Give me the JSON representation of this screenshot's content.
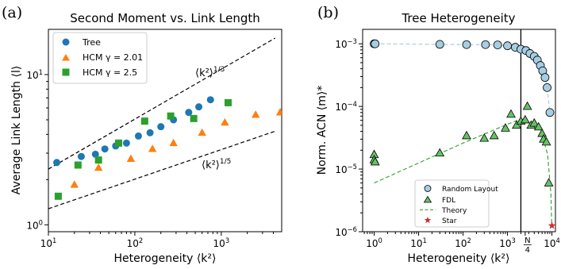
{
  "chart_data": [
    {
      "panel_label": "(a)",
      "type": "scatter",
      "title": "Second Moment vs. Link Length",
      "xlabel": "Heterogeneity ⟨k²⟩",
      "ylabel": "Average Link Length ⟨l⟩",
      "xscale": "log",
      "yscale": "log",
      "xlim": [
        10,
        5000
      ],
      "ylim": [
        0.9,
        20
      ],
      "x_ticks": [
        {
          "value": 10,
          "base": "10",
          "exp": "1"
        },
        {
          "value": 100,
          "base": "10",
          "exp": "2"
        },
        {
          "value": 1000,
          "base": "10",
          "exp": "3"
        }
      ],
      "y_ticks": [
        {
          "value": 1,
          "base": "10",
          "exp": "0"
        },
        {
          "value": 10,
          "base": "10",
          "exp": "1"
        }
      ],
      "legend_position": "top-left",
      "grid": false,
      "series": [
        {
          "name": "Tree",
          "marker": "circle",
          "color": "#1f77b4",
          "x": [
            12.5,
            24,
            35,
            45,
            60,
            80,
            110,
            150,
            200,
            280,
            420,
            550,
            750
          ],
          "y": [
            2.6,
            2.85,
            2.95,
            3.2,
            3.35,
            3.5,
            3.9,
            4.1,
            4.5,
            5.0,
            5.6,
            6.1,
            6.8
          ]
        },
        {
          "name": "HCM γ = 2.01",
          "marker": "triangle",
          "color": "#ff7f0e",
          "x": [
            20,
            38,
            90,
            160,
            280,
            600,
            1100,
            2500,
            4800
          ],
          "y": [
            1.85,
            2.4,
            2.75,
            3.2,
            3.5,
            4.1,
            4.8,
            5.4,
            5.6
          ]
        },
        {
          "name": "HCM γ = 2.5",
          "marker": "square",
          "color": "#2ca02c",
          "x": [
            13,
            22,
            38,
            65,
            130,
            260,
            480,
            1200
          ],
          "y": [
            1.55,
            2.5,
            2.7,
            3.5,
            4.9,
            5.3,
            5.1,
            6.5
          ]
        }
      ],
      "reference_lines": [
        {
          "label": "⟨k²⟩",
          "exponent": "1/3",
          "x": [
            10,
            4200
          ],
          "y": [
            2.35,
            17.5
          ],
          "style": "dashed"
        },
        {
          "label": "⟨k²⟩",
          "exponent": "1/5",
          "x": [
            10,
            4200
          ],
          "y": [
            1.28,
            4.2
          ],
          "style": "dashed"
        }
      ]
    },
    {
      "panel_label": "(b)",
      "type": "scatter",
      "title": "Tree Heterogeneity",
      "xlabel": "Heterogeneity ⟨k²⟩",
      "ylabel": "Norm. ACN ⟨m⟩*",
      "xscale": "log",
      "yscale": "log",
      "xlim": [
        0.55,
        12000
      ],
      "ylim": [
        1e-06,
        0.0017
      ],
      "x_ticks": [
        {
          "value": 1,
          "base": "10",
          "exp": "0"
        },
        {
          "value": 10,
          "base": "10",
          "exp": "1"
        },
        {
          "value": 100,
          "base": "10",
          "exp": "2"
        },
        {
          "value": 1000,
          "base": "10",
          "exp": "3"
        },
        {
          "value": 10000,
          "base": "10",
          "exp": "4"
        }
      ],
      "x_special_tick": {
        "value": 2500,
        "numerator": "N",
        "denominator": "4"
      },
      "vertical_line_x": 2000,
      "y_ticks": [
        {
          "value": 1e-06,
          "base": "10",
          "exp": "−6"
        },
        {
          "value": 1e-05,
          "base": "10",
          "exp": "−5"
        },
        {
          "value": 0.0001,
          "base": "10",
          "exp": "−4"
        },
        {
          "value": 0.001,
          "base": "10",
          "exp": "−3"
        }
      ],
      "legend_position": "lower-center",
      "grid": false,
      "series": [
        {
          "name": "Random Layout",
          "marker": "circle",
          "color": "#a6cee3",
          "edge": "#000000",
          "line_color": "#a6cee3",
          "x": [
            1,
            1.05,
            30,
            120,
            320,
            600,
            1000,
            1500,
            2000,
            2600,
            3200,
            4000,
            4700,
            5500,
            6200,
            7000,
            7800,
            9000
          ],
          "y": [
            0.001,
            0.001,
            0.00098,
            0.00097,
            0.00097,
            0.00096,
            0.00093,
            0.00088,
            0.00082,
            0.00078,
            0.0007,
            0.00063,
            0.00055,
            0.00045,
            0.00037,
            0.00029,
            0.0002,
            8e-05
          ]
        },
        {
          "name": "FDL",
          "marker": "triangle",
          "color": "#66c266",
          "edge": "#000000",
          "x": [
            1,
            1,
            1.05,
            30,
            120,
            300,
            500,
            900,
            1200,
            1600,
            2000,
            2500,
            2800,
            3400,
            4000,
            5000,
            6000,
            6500,
            7500,
            8500
          ],
          "y": [
            1.7e-05,
            1.4e-05,
            1.3e-05,
            1.8e-05,
            3.4e-05,
            3.1e-05,
            3.4e-05,
            4.5e-05,
            7.5e-05,
            5e-05,
            5.8e-05,
            6.1e-05,
            0.0001,
            5e-05,
            5.4e-05,
            4.7e-05,
            3.7e-05,
            3e-05,
            2.7e-05,
            6e-06
          ]
        },
        {
          "name": "Theory",
          "style": "dashed",
          "color": "#2ca02c",
          "x": [
            1,
            10,
            100,
            1000,
            2000,
            4000,
            6000,
            8000,
            9500,
            9900
          ],
          "y": [
            6e-06,
            1.25e-05,
            2.6e-05,
            5.2e-05,
            6.3e-05,
            5.3e-05,
            3.6e-05,
            1.7e-05,
            4e-06,
            1.25e-06
          ]
        },
        {
          "name": "Star",
          "marker": "star",
          "color": "#d62728",
          "x": [
            10000
          ],
          "y": [
            1.25e-06
          ]
        }
      ]
    }
  ]
}
